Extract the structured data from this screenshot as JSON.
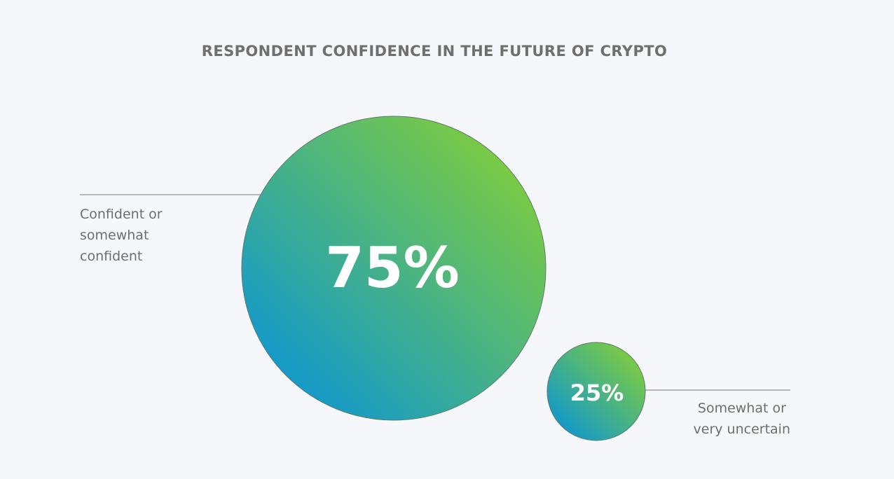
{
  "chart_data": {
    "type": "bubble",
    "title": "RESPONDENT CONFIDENCE IN THE FUTURE OF CRYPTO",
    "unit": "%",
    "items": [
      {
        "label_lines": [
          "Confident or",
          "somewhat",
          "confident"
        ],
        "value": 75,
        "display": "75%"
      },
      {
        "label_lines": [
          "Somewhat or",
          "very uncertain"
        ],
        "value": 25,
        "display": "25%"
      }
    ],
    "colors": {
      "gradient_start": "#0090e3",
      "gradient_end": "#8ed42a",
      "stroke": "#5f7a68"
    }
  }
}
